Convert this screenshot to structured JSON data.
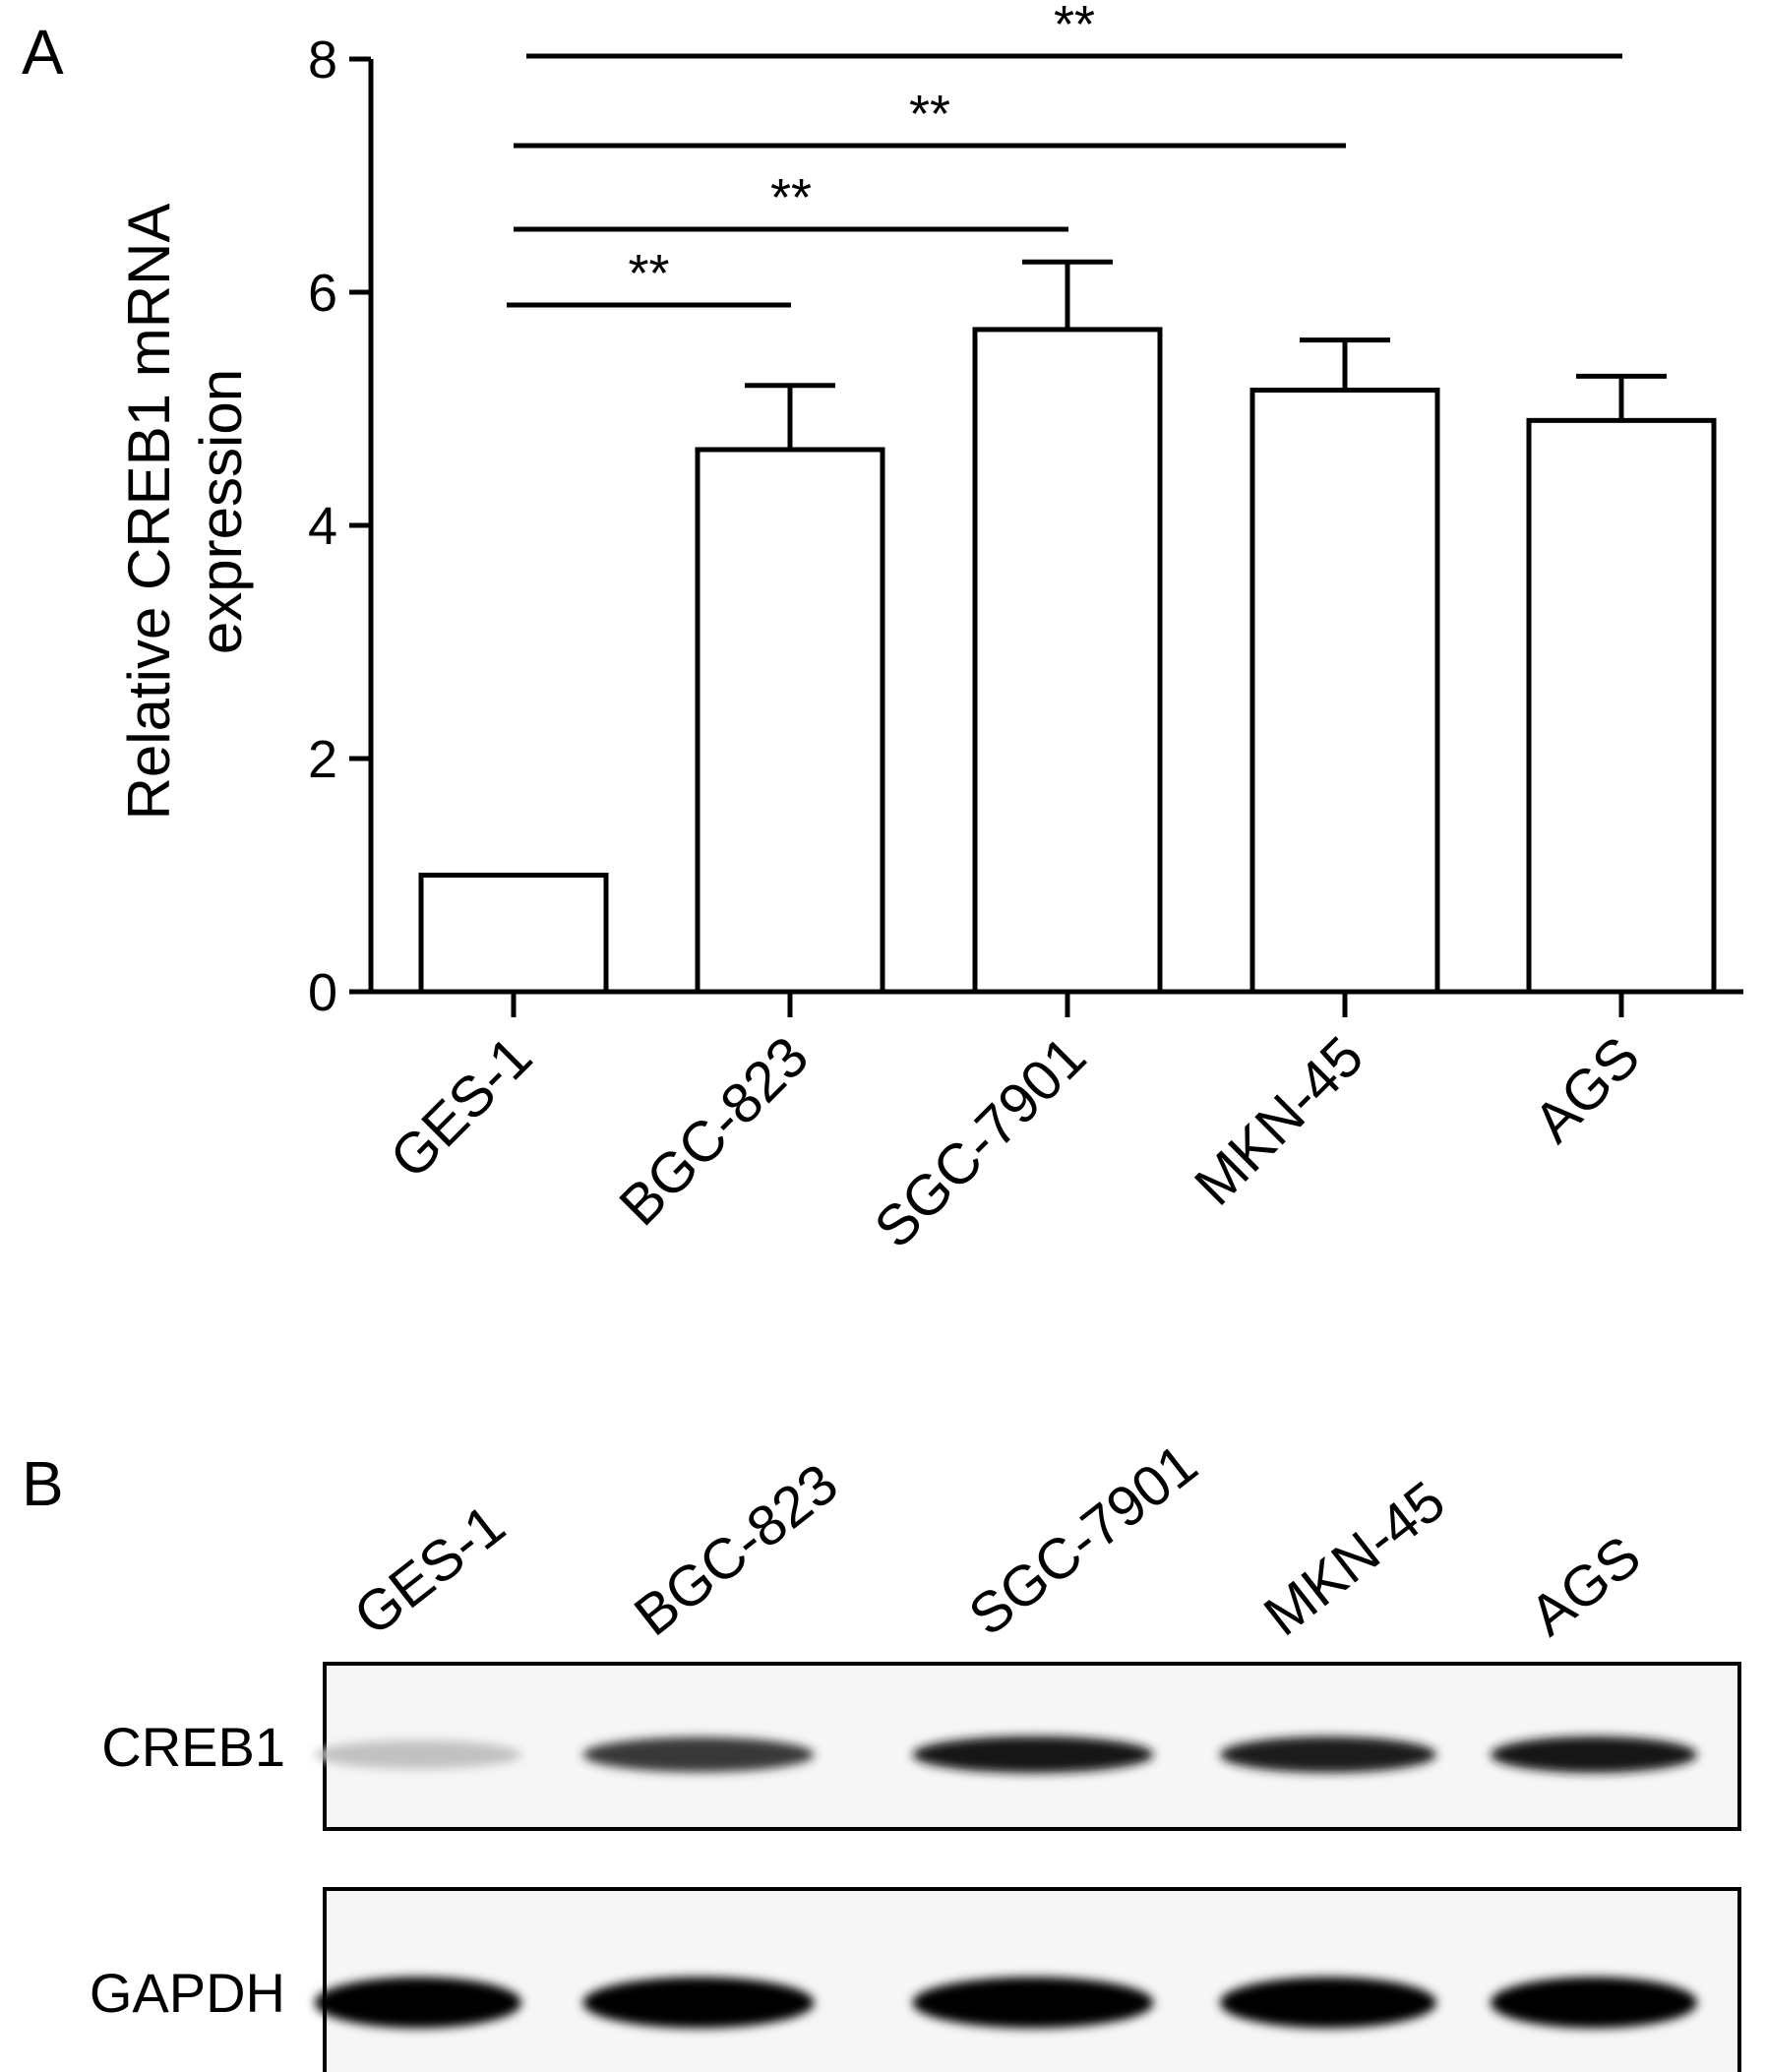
{
  "panels": {
    "a": "A",
    "b": "B"
  },
  "chart_data": {
    "type": "bar",
    "title": "",
    "categories": [
      "GES-1",
      "BGC-823",
      "SGC-7901",
      "MKN-45",
      "AGS"
    ],
    "series": [
      {
        "values": [
          1.0,
          4.65,
          5.68,
          5.16,
          4.9
        ],
        "error": [
          0.0,
          0.55,
          0.58,
          0.43,
          0.38
        ]
      }
    ],
    "ylabel_lines": [
      "Relative CREB1 mRNA",
      "expression"
    ],
    "xlabel": "",
    "ylim": [
      0,
      8
    ],
    "yticks": [
      0,
      2,
      4,
      6,
      8
    ],
    "grid": false,
    "bar_fill": "#ffffff",
    "bar_edge": "#000000",
    "significance": [
      {
        "from": "GES-1",
        "to": "BGC-823",
        "label": "**"
      },
      {
        "from": "GES-1",
        "to": "SGC-7901",
        "label": "**"
      },
      {
        "from": "GES-1",
        "to": "MKN-45",
        "label": "**"
      },
      {
        "from": "GES-1",
        "to": "AGS",
        "label": "**"
      }
    ]
  },
  "blot": {
    "lanes": [
      "GES-1",
      "BGC-823",
      "SGC-7901",
      "MKN-45",
      "AGS"
    ],
    "rows": [
      {
        "label": "CREB1",
        "intensity": [
          0.25,
          0.8,
          0.95,
          0.9,
          0.92
        ]
      },
      {
        "label": "GAPDH",
        "intensity": [
          1,
          1,
          1,
          1,
          1
        ]
      }
    ]
  }
}
